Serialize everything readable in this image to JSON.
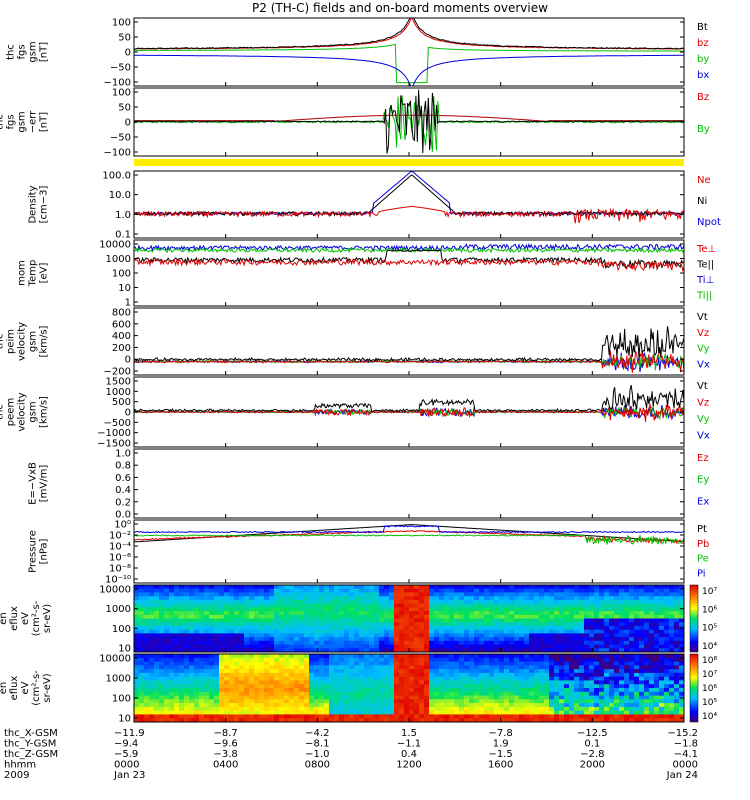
{
  "title": "P2 (TH-C) fields and on-board moments overview",
  "panels": [
    {
      "id": "fgs_gsm",
      "ylabel": [
        "thc",
        "fgs",
        "gsm",
        "[nT]"
      ],
      "ticks": [
        "100",
        "50",
        "0",
        "−50",
        "−100"
      ],
      "legend": [
        {
          "label": "Bt",
          "color": "#000000"
        },
        {
          "label": "bz",
          "color": "#e00000"
        },
        {
          "label": "by",
          "color": "#00c000"
        },
        {
          "label": "bx",
          "color": "#0000e0"
        }
      ]
    },
    {
      "id": "fgs_gsm_err",
      "ylabel": [
        "thc",
        "fgs",
        "gsm",
        "−err",
        "[nT]"
      ],
      "ticks": [
        "100",
        "50",
        "0",
        "−50",
        "−100"
      ],
      "legend": [
        {
          "label": "Bz",
          "color": "#e00000"
        },
        {
          "label": "By",
          "color": "#00c000"
        }
      ]
    },
    {
      "id": "density",
      "ylabel": [
        "Density",
        "[cm−3]"
      ],
      "ticks": [
        "100.0",
        "10.0",
        "1.0",
        "0.1"
      ],
      "legend": [
        {
          "label": "Ne",
          "color": "#e00000"
        },
        {
          "label": "Ni",
          "color": "#000000"
        },
        {
          "label": "Npot",
          "color": "#0000e0"
        }
      ]
    },
    {
      "id": "temperature",
      "ylabel": [
        "mom",
        "Temp",
        "[eV]"
      ],
      "ticks": [
        "10000",
        "1000",
        "100",
        "10",
        "1"
      ],
      "legend": [
        {
          "label": "Te⊥",
          "color": "#e00000"
        },
        {
          "label": "Te||",
          "color": "#000000"
        },
        {
          "label": "Ti⊥",
          "color": "#0000e0"
        },
        {
          "label": "Ti||",
          "color": "#00c000"
        }
      ]
    },
    {
      "id": "peim_velocity",
      "ylabel": [
        "thc",
        "peim",
        "velocity",
        "gsm",
        "[km/s]"
      ],
      "ticks": [
        "800",
        "600",
        "400",
        "200",
        "0",
        "−200"
      ],
      "legend": [
        {
          "label": "Vt",
          "color": "#000000"
        },
        {
          "label": "Vz",
          "color": "#e00000"
        },
        {
          "label": "Vy",
          "color": "#00c000"
        },
        {
          "label": "Vx",
          "color": "#0000e0"
        }
      ]
    },
    {
      "id": "peem_velocity",
      "ylabel": [
        "thc",
        "peem",
        "velocity",
        "gsm",
        "[km/s]"
      ],
      "ticks": [
        "1500",
        "1000",
        "500",
        "0",
        "−500",
        "−1000",
        "−1500"
      ],
      "legend": [
        {
          "label": "Vt",
          "color": "#000000"
        },
        {
          "label": "Vz",
          "color": "#e00000"
        },
        {
          "label": "Vy",
          "color": "#00c000"
        },
        {
          "label": "Vx",
          "color": "#0000e0"
        }
      ]
    },
    {
      "id": "efield",
      "ylabel": [
        "E=−VxB",
        "[mV/m]"
      ],
      "ticks": [
        "1.0",
        "0.8",
        "0.6",
        "0.4",
        "0.2",
        "0.0"
      ],
      "legend": [
        {
          "label": "Ez",
          "color": "#e00000"
        },
        {
          "label": "Ey",
          "color": "#00c000"
        },
        {
          "label": "Ex",
          "color": "#0000e0"
        }
      ]
    },
    {
      "id": "pressure",
      "ylabel": [
        "Pressure",
        "[nPa]"
      ],
      "ticks": [
        "10⁰",
        "10⁻²",
        "10⁻⁴",
        "10⁻⁶",
        "10⁻⁸",
        "10⁻¹⁰"
      ],
      "legend": [
        {
          "label": "Pt",
          "color": "#000000"
        },
        {
          "label": "Pb",
          "color": "#e00000"
        },
        {
          "label": "Pe",
          "color": "#00c000"
        },
        {
          "label": "Pi",
          "color": "#0000e0"
        }
      ]
    },
    {
      "id": "peir_spec",
      "ylabel": [
        "thc",
        "peir",
        "en",
        "eflux",
        "eV",
        "(cm²-s-",
        "sr-eV)"
      ],
      "ticks": [
        "10000",
        "1000",
        "100",
        "10"
      ],
      "colorbar": [
        "10⁷",
        "10⁶",
        "10⁵",
        "10⁴"
      ]
    },
    {
      "id": "peer_spec",
      "ylabel": [
        "thc",
        "peer",
        "en",
        "eflux",
        "eV",
        "(cm²-s-",
        "sr-eV)"
      ],
      "ticks": [
        "10000",
        "1000",
        "100",
        "10"
      ],
      "colorbar": [
        "10⁸",
        "10⁷",
        "10⁶",
        "10⁵",
        "10⁴"
      ]
    }
  ],
  "xaxis": {
    "row_labels": [
      "thc_X-GSM",
      "thc_Y-GSM",
      "thc_Z-GSM",
      "hhmm",
      "2009"
    ],
    "columns": [
      {
        "values": [
          "−11.9",
          "−9.4",
          "−5.9",
          "0000",
          "Jan 23"
        ]
      },
      {
        "values": [
          "−8.7",
          "−9.6",
          "−3.8",
          "0400",
          ""
        ]
      },
      {
        "values": [
          "−4.2",
          "−8.1",
          "−1.0",
          "0800",
          ""
        ]
      },
      {
        "values": [
          "1.5",
          "−1.1",
          "0.4",
          "1200",
          ""
        ]
      },
      {
        "values": [
          "−7.8",
          "1.9",
          "−1.5",
          "1600",
          ""
        ]
      },
      {
        "values": [
          "−12.5",
          "0.1",
          "−2.8",
          "2000",
          ""
        ]
      },
      {
        "values": [
          "−15.2",
          "−1.8",
          "−4.1",
          "0000",
          "Jan 24"
        ]
      }
    ]
  },
  "chart_data": [
    {
      "type": "line",
      "title": "P2 (TH-C) fields and on-board moments overview",
      "ylabel": "thc fgs gsm [nT]",
      "ylim": [
        -100,
        100
      ],
      "x": [
        "0000",
        "0400",
        "0800",
        "1200",
        "1600",
        "2000",
        "0000"
      ],
      "series": [
        {
          "name": "Bt",
          "values": [
            15,
            20,
            50,
            100,
            50,
            25,
            15
          ]
        },
        {
          "name": "bz",
          "values": [
            15,
            20,
            45,
            100,
            45,
            20,
            10
          ]
        },
        {
          "name": "by",
          "values": [
            5,
            10,
            25,
            -60,
            30,
            10,
            5
          ]
        },
        {
          "name": "bx",
          "values": [
            -15,
            -20,
            -50,
            -100,
            -50,
            -20,
            -15
          ]
        }
      ]
    },
    {
      "type": "line",
      "ylabel": "Density [cm-3]",
      "ylim": [
        0.05,
        200
      ],
      "x": [
        "0000",
        "0400",
        "0800",
        "1200",
        "1600",
        "2000",
        "0000"
      ],
      "series": [
        {
          "name": "Ne",
          "values": [
            0.8,
            1.0,
            0.7,
            3.0,
            0.8,
            0.5,
            0.4
          ]
        },
        {
          "name": "Ni",
          "values": [
            0.8,
            1.0,
            0.6,
            200,
            0.8,
            0.5,
            0.4
          ]
        },
        {
          "name": "Npot",
          "values": [
            1.0,
            1.2,
            1.5,
            200,
            10,
            0.8,
            0.6
          ]
        }
      ]
    },
    {
      "type": "line",
      "ylabel": "mom Temp [eV]",
      "ylim": [
        1,
        10000
      ],
      "x": [
        "0000",
        "0400",
        "0800",
        "1200",
        "1600",
        "2000",
        "0000"
      ],
      "series": [
        {
          "name": "Te⊥",
          "values": [
            400,
            700,
            600,
            400,
            900,
            200,
            200
          ]
        },
        {
          "name": "Te||",
          "values": [
            500,
            800,
            700,
            2000,
            1000,
            300,
            300
          ]
        },
        {
          "name": "Ti⊥",
          "values": [
            3000,
            4000,
            3000,
            2000,
            5000,
            6000,
            6000
          ]
        },
        {
          "name": "Ti||",
          "values": [
            2500,
            3500,
            2500,
            1500,
            4500,
            5000,
            5000
          ]
        }
      ]
    },
    {
      "type": "line",
      "ylabel": "Pressure [nPa]",
      "ylim": [
        1e-10,
        1
      ],
      "x": [
        "0000",
        "0400",
        "0800",
        "1200",
        "1600",
        "2000",
        "0000"
      ],
      "series": [
        {
          "name": "Pt",
          "values": [
            0.01,
            0.05,
            0.3,
            1,
            0.3,
            0.05,
            0.01
          ]
        },
        {
          "name": "Pb",
          "values": [
            0.005,
            0.02,
            0.2,
            1,
            0.2,
            0.02,
            0.005
          ]
        },
        {
          "name": "Pe",
          "values": [
            0.001,
            0.002,
            0.003,
            0.003,
            0.002,
            0.001,
            0.001
          ]
        },
        {
          "name": "Pi",
          "values": [
            0.005,
            0.01,
            0.02,
            0.05,
            0.01,
            0.005,
            0.005
          ]
        }
      ]
    },
    {
      "type": "heatmap",
      "ylabel": "thc peir en eflux",
      "ylim": [
        10,
        10000
      ],
      "zlim": [
        10000,
        10000000
      ]
    },
    {
      "type": "heatmap",
      "ylabel": "thc peer en eflux",
      "ylim": [
        10,
        10000
      ],
      "zlim": [
        10000,
        100000000
      ]
    }
  ]
}
